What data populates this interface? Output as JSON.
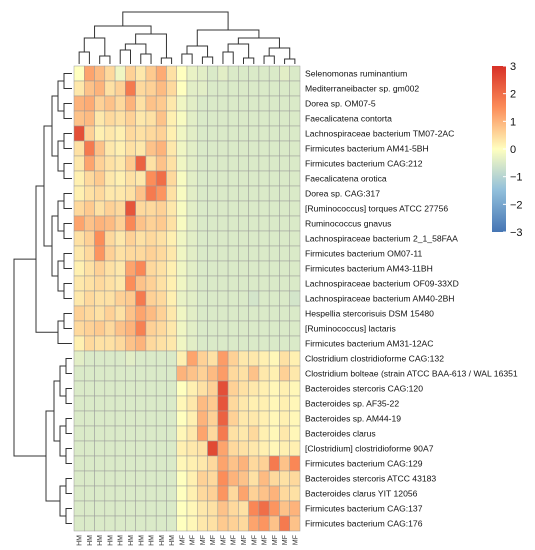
{
  "chart_data": {
    "type": "heatmap",
    "rows": [
      "Selenomonas ruminantium",
      "Mediterraneibacter sp. gm002",
      "Dorea sp. OM07-5",
      "Faecalicatena contorta",
      "Lachnospiraceae bacterium TM07-2AC",
      "Firmicutes bacterium AM41-5BH",
      "Firmicutes bacterium CAG:212",
      "Faecalicatena orotica",
      "Dorea sp. CAG:317",
      "[Ruminococcus] torques ATCC 27756",
      "Ruminococcus gnavus",
      "Lachnospiraceae bacterium 2_1_58FAA",
      "Firmicutes bacterium OM07-11",
      "Firmicutes bacterium AM43-11BH",
      "Lachnospiraceae bacterium OF09-33XD",
      "Lachnospiraceae bacterium AM40-2BH",
      "Hespellia stercorisuis DSM 15480",
      "[Ruminococcus] lactaris",
      "Firmicutes bacterium AM31-12AC",
      "Clostridium clostridioforme CAG:132",
      "Clostridium bolteae (strain ATCC BAA-613 / WAL 16351",
      "Bacteroides stercoris CAG:120",
      "Bacteroides sp. AF35-22",
      "Bacteroides sp. AM44-19",
      "Bacteroides clarus",
      "[Clostridium] clostridioforme 90A7",
      "Firmicutes bacterium CAG:129",
      "Bacteroides stercoris ATCC 43183",
      "Bacteroides clarus YIT 12056",
      "Firmicutes bacterium CAG:137",
      "Firmicutes bacterium CAG:176"
    ],
    "columns": [
      "HM",
      "HM",
      "HM",
      "HM",
      "HM",
      "HM",
      "HM",
      "HM",
      "HM",
      "HM",
      "MF",
      "MF",
      "MF",
      "MF",
      "MF",
      "MF",
      "MF",
      "MF",
      "MF",
      "MF",
      "MF",
      "MF"
    ],
    "values": [
      [
        0.0,
        1.2,
        0.9,
        0.5,
        -0.2,
        0.6,
        0.3,
        0.7,
        1.1,
        0.4,
        0.0,
        -0.3,
        -0.4,
        -0.5,
        -0.4,
        -0.5,
        -0.5,
        -0.5,
        -0.5,
        -0.5,
        -0.4,
        -0.5
      ],
      [
        0.3,
        0.8,
        1.0,
        0.4,
        0.6,
        1.8,
        0.5,
        0.6,
        0.9,
        0.5,
        0.0,
        -0.4,
        -0.4,
        -0.5,
        -0.5,
        -0.5,
        -0.5,
        -0.5,
        -0.5,
        -0.5,
        -0.5,
        -0.5
      ],
      [
        1.0,
        1.1,
        0.6,
        0.8,
        0.5,
        1.0,
        0.4,
        0.8,
        0.7,
        0.3,
        -0.2,
        -0.4,
        -0.5,
        -0.5,
        -0.5,
        -0.5,
        -0.5,
        -0.5,
        -0.5,
        -0.5,
        -0.5,
        -0.5
      ],
      [
        0.8,
        0.9,
        0.3,
        0.5,
        0.4,
        0.6,
        0.3,
        0.4,
        0.8,
        0.2,
        -0.1,
        -0.4,
        -0.5,
        -0.5,
        -0.5,
        -0.5,
        -0.5,
        -0.5,
        -0.5,
        -0.5,
        -0.5,
        -0.5
      ],
      [
        2.5,
        0.6,
        0.2,
        0.3,
        0.2,
        0.5,
        0.4,
        0.5,
        0.6,
        0.2,
        -0.2,
        -0.4,
        -0.5,
        -0.5,
        -0.5,
        -0.5,
        -0.5,
        -0.5,
        -0.5,
        -0.5,
        -0.5,
        -0.5
      ],
      [
        0.4,
        1.8,
        0.8,
        0.3,
        0.2,
        0.4,
        0.3,
        0.8,
        1.0,
        0.3,
        -0.2,
        -0.4,
        -0.5,
        -0.5,
        -0.5,
        -0.5,
        -0.5,
        -0.5,
        -0.5,
        -0.5,
        -0.5,
        -0.5
      ],
      [
        0.3,
        1.2,
        0.6,
        0.4,
        0.3,
        0.7,
        2.2,
        0.4,
        0.8,
        0.4,
        -0.2,
        -0.4,
        -0.5,
        -0.5,
        -0.5,
        -0.5,
        -0.5,
        -0.5,
        -0.5,
        -0.5,
        -0.5,
        -0.5
      ],
      [
        0.2,
        0.5,
        0.7,
        0.3,
        0.2,
        0.4,
        0.3,
        1.5,
        2.0,
        0.5,
        -0.1,
        -0.4,
        -0.5,
        -0.5,
        -0.5,
        -0.5,
        -0.5,
        -0.5,
        -0.5,
        -0.5,
        -0.5,
        -0.5
      ],
      [
        0.2,
        0.4,
        0.5,
        0.3,
        0.3,
        0.4,
        0.8,
        1.8,
        1.4,
        0.4,
        -0.1,
        -0.4,
        -0.5,
        -0.5,
        -0.5,
        -0.5,
        -0.5,
        -0.5,
        -0.5,
        -0.5,
        -0.5,
        -0.5
      ],
      [
        0.5,
        0.7,
        0.4,
        0.6,
        0.5,
        2.4,
        0.5,
        0.5,
        0.6,
        0.3,
        -0.1,
        -0.4,
        -0.5,
        -0.5,
        -0.5,
        -0.5,
        -0.5,
        -0.5,
        -0.5,
        -0.5,
        -0.5,
        -0.5
      ],
      [
        1.2,
        0.8,
        1.0,
        0.9,
        0.6,
        1.6,
        0.8,
        0.6,
        0.7,
        0.4,
        -0.1,
        -0.4,
        -0.5,
        -0.5,
        -0.5,
        -0.5,
        -0.5,
        -0.5,
        -0.5,
        -0.5,
        -0.5,
        -0.5
      ],
      [
        0.4,
        0.6,
        1.5,
        0.5,
        0.3,
        0.6,
        0.4,
        0.5,
        0.4,
        0.2,
        -0.2,
        -0.4,
        -0.5,
        -0.5,
        -0.5,
        -0.5,
        -0.5,
        -0.5,
        -0.5,
        -0.5,
        -0.5,
        -0.5
      ],
      [
        0.3,
        0.5,
        1.4,
        0.6,
        0.4,
        0.5,
        0.5,
        0.6,
        0.5,
        0.3,
        -0.2,
        -0.4,
        -0.5,
        -0.5,
        -0.5,
        -0.5,
        -0.5,
        -0.5,
        -0.5,
        -0.5,
        -0.5,
        -0.5
      ],
      [
        0.2,
        0.4,
        0.6,
        0.4,
        0.3,
        1.2,
        1.6,
        0.5,
        0.4,
        0.2,
        -0.2,
        -0.4,
        -0.5,
        -0.5,
        -0.5,
        -0.5,
        -0.5,
        -0.5,
        -0.5,
        -0.5,
        -0.5,
        -0.5
      ],
      [
        0.3,
        0.4,
        0.5,
        0.4,
        0.3,
        1.5,
        0.8,
        0.6,
        0.4,
        0.2,
        -0.2,
        -0.4,
        -0.5,
        -0.5,
        -0.5,
        -0.5,
        -0.5,
        -0.5,
        -0.5,
        -0.5,
        -0.5,
        -0.5
      ],
      [
        0.3,
        0.5,
        0.4,
        0.4,
        0.6,
        0.7,
        1.8,
        0.6,
        0.5,
        0.2,
        -0.3,
        -0.4,
        -0.5,
        -0.5,
        -0.5,
        -0.5,
        -0.5,
        -0.6,
        -0.5,
        -0.5,
        -0.5,
        -0.6
      ],
      [
        0.6,
        0.5,
        0.4,
        0.6,
        0.4,
        0.8,
        1.2,
        0.9,
        0.6,
        0.3,
        -0.2,
        -0.4,
        -0.5,
        -0.5,
        -0.5,
        -0.5,
        -0.5,
        -0.5,
        -0.5,
        -0.5,
        -0.5,
        -0.5
      ],
      [
        0.5,
        0.6,
        0.7,
        0.5,
        0.8,
        1.0,
        1.7,
        0.6,
        0.5,
        0.3,
        -0.2,
        -0.4,
        -0.5,
        -0.5,
        -0.5,
        -0.5,
        -0.5,
        -0.5,
        -0.5,
        -0.5,
        -0.5,
        -0.5
      ],
      [
        0.2,
        0.5,
        0.4,
        0.4,
        0.5,
        0.8,
        1.0,
        0.5,
        0.4,
        0.3,
        -0.2,
        -0.4,
        -0.5,
        -0.5,
        -0.5,
        -0.5,
        -0.5,
        -0.5,
        -0.5,
        -0.5,
        -0.5,
        -0.5
      ],
      [
        -0.4,
        -0.5,
        -0.5,
        -0.5,
        -0.5,
        -0.4,
        -0.5,
        -0.5,
        -0.5,
        -0.5,
        0.2,
        1.2,
        0.6,
        0.4,
        1.3,
        0.6,
        0.3,
        0.3,
        0.2,
        0.1,
        0.4,
        0.2
      ],
      [
        -0.5,
        -0.5,
        -0.5,
        -0.5,
        -0.5,
        -0.5,
        -0.5,
        -0.5,
        -0.5,
        -0.5,
        1.0,
        0.8,
        0.6,
        0.9,
        1.3,
        0.5,
        0.4,
        0.8,
        0.3,
        0.2,
        0.6,
        0.3
      ],
      [
        -0.5,
        -0.5,
        -0.5,
        -0.5,
        -0.5,
        -0.5,
        -0.5,
        -0.5,
        -0.5,
        -0.5,
        0.0,
        0.2,
        0.4,
        0.6,
        2.5,
        0.6,
        0.4,
        0.3,
        0.2,
        0.1,
        0.2,
        0.1
      ],
      [
        -0.5,
        -0.5,
        -0.5,
        -0.5,
        -0.5,
        -0.5,
        -0.5,
        -0.5,
        -0.5,
        -0.5,
        0.1,
        0.3,
        0.9,
        0.7,
        2.4,
        0.5,
        0.3,
        0.2,
        0.2,
        0.1,
        0.2,
        0.1
      ],
      [
        -0.5,
        -0.5,
        -0.5,
        -0.5,
        -0.5,
        -0.5,
        -0.5,
        -0.5,
        -0.5,
        -0.5,
        0.0,
        0.2,
        1.0,
        0.6,
        2.2,
        0.6,
        0.3,
        0.3,
        0.2,
        0.1,
        0.2,
        0.1
      ],
      [
        -0.5,
        -0.5,
        -0.5,
        -0.5,
        -0.5,
        -0.5,
        -0.5,
        -0.5,
        -0.5,
        -0.5,
        0.1,
        0.3,
        1.2,
        0.5,
        1.8,
        0.4,
        0.3,
        0.5,
        0.2,
        0.1,
        0.3,
        0.1
      ],
      [
        -0.5,
        -0.5,
        -0.5,
        -0.5,
        -0.5,
        -0.5,
        -0.5,
        -0.5,
        -0.5,
        -0.5,
        0.2,
        0.3,
        0.4,
        2.6,
        1.2,
        0.5,
        0.4,
        0.3,
        0.2,
        0.1,
        0.2,
        0.2
      ],
      [
        -0.5,
        -0.5,
        -0.5,
        -0.5,
        -0.5,
        -0.5,
        -0.5,
        -0.5,
        -0.5,
        -0.5,
        0.1,
        0.2,
        0.3,
        0.5,
        1.2,
        0.8,
        1.0,
        0.5,
        0.6,
        1.8,
        0.8,
        1.6
      ],
      [
        -0.5,
        -0.5,
        -0.5,
        -0.5,
        -0.5,
        -0.5,
        -0.5,
        -0.5,
        -0.5,
        -0.5,
        0.0,
        0.2,
        0.6,
        0.5,
        1.5,
        1.0,
        0.8,
        0.4,
        0.9,
        0.5,
        0.4,
        0.5
      ],
      [
        -0.5,
        -0.5,
        -0.5,
        -0.5,
        -0.5,
        -0.5,
        -0.5,
        -0.5,
        -0.5,
        -0.5,
        0.0,
        0.2,
        0.5,
        0.6,
        1.4,
        0.5,
        1.2,
        0.6,
        0.8,
        1.0,
        0.5,
        0.4
      ],
      [
        -0.5,
        -0.5,
        -0.5,
        -0.5,
        -0.5,
        -0.5,
        -0.5,
        -0.5,
        -0.5,
        -0.5,
        0.0,
        0.1,
        0.3,
        0.4,
        0.8,
        0.5,
        0.4,
        1.6,
        2.0,
        1.4,
        0.8,
        1.0
      ],
      [
        -0.5,
        -0.5,
        -0.5,
        -0.5,
        -0.5,
        -0.5,
        -0.5,
        -0.5,
        -0.5,
        -0.5,
        0.0,
        0.1,
        0.3,
        0.4,
        0.7,
        0.6,
        0.5,
        1.2,
        1.4,
        0.8,
        1.8,
        0.8
      ]
    ],
    "scale": {
      "min": -3,
      "max": 3,
      "ticks": [
        3,
        2,
        1,
        0,
        -1,
        -2,
        -3
      ]
    },
    "colors": {
      "low": "#4575b4",
      "mid": "#ffffbf",
      "high": "#d73027"
    },
    "legend_position": "right",
    "dendrograms": {
      "rows": true,
      "columns": true
    }
  }
}
